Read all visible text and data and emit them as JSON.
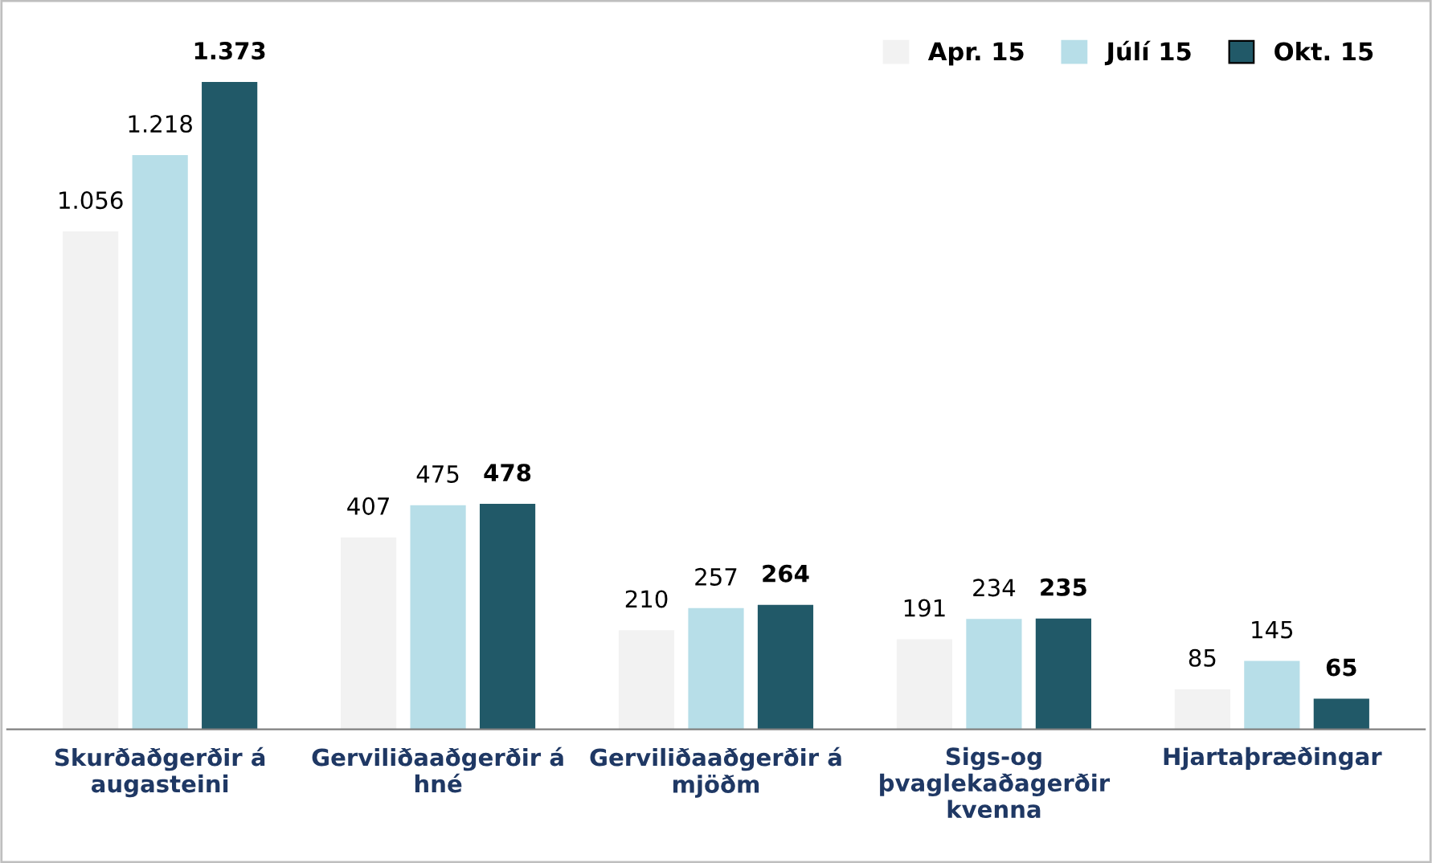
{
  "chart_data": {
    "type": "bar",
    "categories": [
      "Skurðaðgerðir á\naugasteini",
      "Gerviliðaaðgerðir á\nhné",
      "Gerviliðaaðgerðir á\nmjöðm",
      "Sigs-og\nþvaglekaðagerðir\nkvenna",
      "Hjartaþræðingar"
    ],
    "series": [
      {
        "name": "Apr. 15",
        "color": "#f2f2f2",
        "values": [
          1056,
          407,
          210,
          191,
          85
        ],
        "value_labels": [
          "1.056",
          "407",
          "210",
          "191",
          "85"
        ]
      },
      {
        "name": "Júlí 15",
        "color": "#b7dee8",
        "values": [
          1218,
          475,
          257,
          234,
          145
        ],
        "value_labels": [
          "1.218",
          "475",
          "257",
          "234",
          "145"
        ]
      },
      {
        "name": "Okt. 15",
        "color": "#215968",
        "values": [
          1373,
          478,
          264,
          235,
          65
        ],
        "value_labels": [
          "1.373",
          "478",
          "264",
          "235",
          "65"
        ]
      }
    ],
    "legend": "top right",
    "grid": false
  }
}
